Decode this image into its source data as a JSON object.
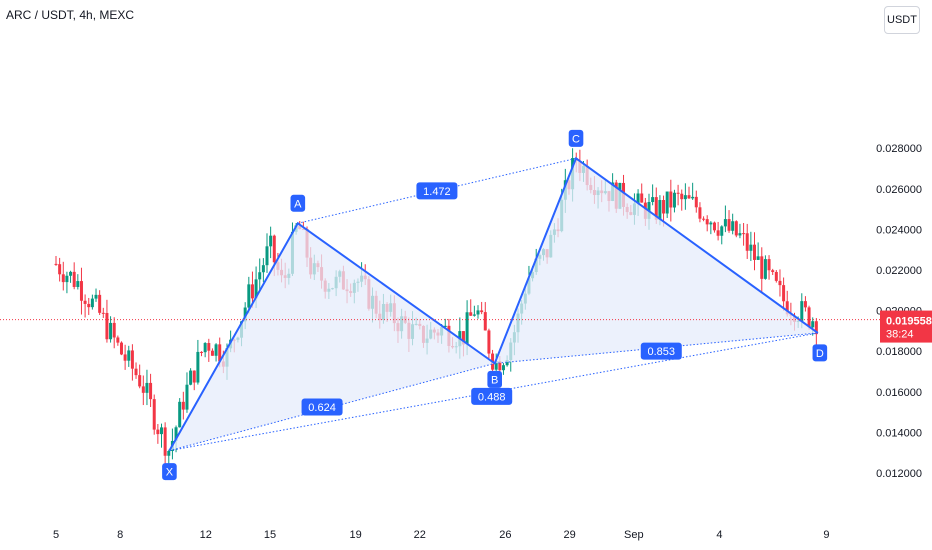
{
  "header": {
    "title": "ARC / USDT, 4h, MEXC",
    "currency_button": "USDT"
  },
  "price_badge": {
    "price": "0.019558",
    "countdown": "38:24",
    "color": "#f23645"
  },
  "colors": {
    "up": "#089981",
    "down": "#f23645",
    "pattern": "#2962ff",
    "fill": "#e6ecfb"
  },
  "chart_data": {
    "type": "candlestick",
    "yticks": [
      "0.028000",
      "0.026000",
      "0.024000",
      "0.022000",
      "0.020000",
      "0.018000",
      "0.016000",
      "0.014000",
      "0.012000"
    ],
    "xticks": [
      "5",
      "8",
      "12",
      "15",
      "19",
      "22",
      "26",
      "29",
      "Sep",
      "4",
      "9"
    ],
    "ylim": [
      0.0115,
      0.0295
    ],
    "last_price": 0.019558,
    "pattern": {
      "points": [
        {
          "label": "X",
          "t": 5.3,
          "price": 0.0131
        },
        {
          "label": "A",
          "t": 11.3,
          "price": 0.0243
        },
        {
          "label": "B",
          "t": 20.5,
          "price": 0.0174
        },
        {
          "label": "C",
          "t": 24.3,
          "price": 0.0275
        },
        {
          "label": "D",
          "t": 35.6,
          "price": 0.0189
        }
      ],
      "ratios": [
        {
          "label": "1.472",
          "connects": [
            "A",
            "C"
          ]
        },
        {
          "label": "0.624",
          "connects": [
            "X",
            "B"
          ]
        },
        {
          "label": "0.488",
          "connects": [
            "A",
            "C",
            "B"
          ]
        },
        {
          "label": "0.853",
          "connects": [
            "B",
            "D"
          ]
        }
      ]
    },
    "close_path": [
      [
        0,
        0.0223
      ],
      [
        1,
        0.0214
      ],
      [
        2,
        0.0199
      ],
      [
        3,
        0.018
      ],
      [
        4,
        0.0165
      ],
      [
        4.8,
        0.0142
      ],
      [
        5.3,
        0.0131
      ],
      [
        6,
        0.0158
      ],
      [
        7,
        0.0185
      ],
      [
        8,
        0.0178
      ],
      [
        9,
        0.0207
      ],
      [
        10,
        0.0231
      ],
      [
        10.6,
        0.0212
      ],
      [
        11.3,
        0.0243
      ],
      [
        12,
        0.0218
      ],
      [
        13,
        0.0213
      ],
      [
        14,
        0.0216
      ],
      [
        15,
        0.0201
      ],
      [
        16,
        0.0195
      ],
      [
        17,
        0.0187
      ],
      [
        18,
        0.0191
      ],
      [
        19,
        0.0187
      ],
      [
        19.6,
        0.0202
      ],
      [
        20.5,
        0.0174
      ],
      [
        21,
        0.0179
      ],
      [
        21.5,
        0.0192
      ],
      [
        22,
        0.0215
      ],
      [
        23,
        0.023
      ],
      [
        24.3,
        0.0275
      ],
      [
        25,
        0.0265
      ],
      [
        26,
        0.0258
      ],
      [
        27,
        0.0252
      ],
      [
        28,
        0.0249
      ],
      [
        29,
        0.0255
      ],
      [
        30,
        0.0251
      ],
      [
        31,
        0.0242
      ],
      [
        32,
        0.0236
      ],
      [
        33,
        0.0221
      ],
      [
        34,
        0.0205
      ],
      [
        35,
        0.0198
      ],
      [
        35.6,
        0.0195
      ]
    ]
  }
}
